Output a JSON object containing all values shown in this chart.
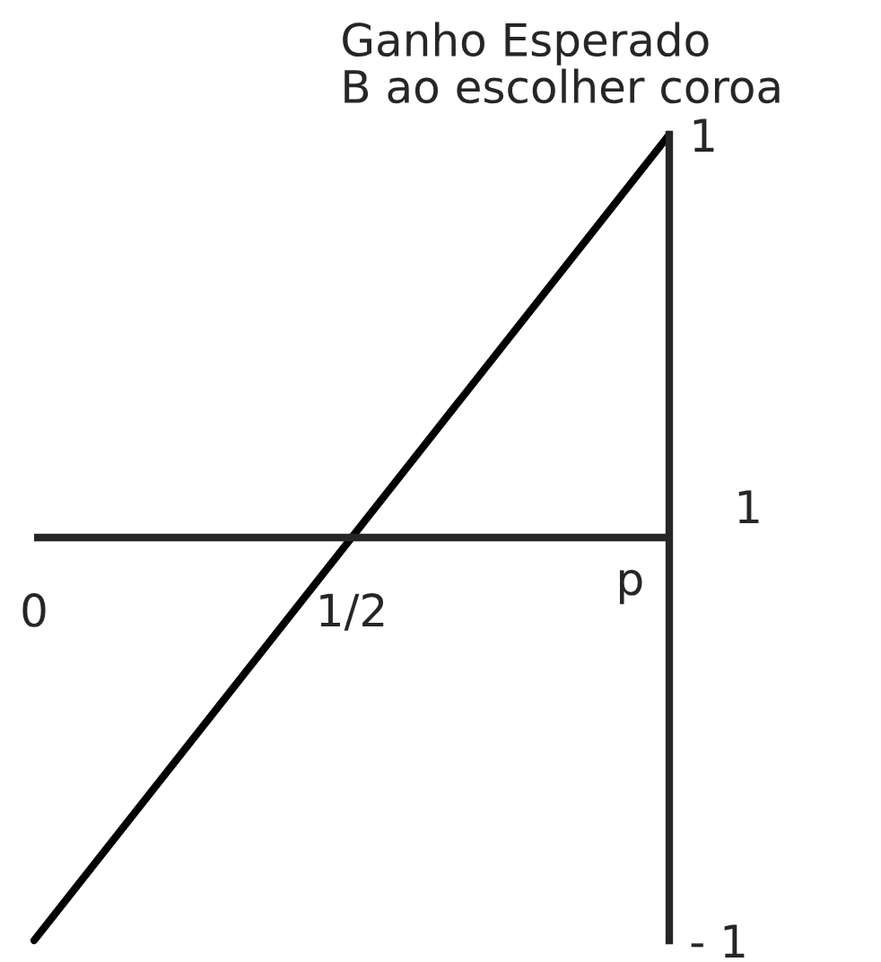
{
  "chart_data": {
    "type": "line",
    "xlabel": "p",
    "ylabel": "Ganho Esperado\nB ao escolher coroa",
    "x": [
      0,
      1
    ],
    "series": [
      {
        "color": "#000000",
        "values": [
          -1,
          1
        ]
      }
    ],
    "xlim": [
      0,
      1
    ],
    "ylim": [
      -1,
      1
    ],
    "xticks": [
      0,
      {
        "value": 0.5,
        "label": "1/2"
      }
    ],
    "yticks": [
      {
        "value": -1,
        "label": "- 1"
      },
      1
    ],
    "annotations": [
      "1"
    ],
    "line_style": "solid",
    "marker": "none"
  }
}
